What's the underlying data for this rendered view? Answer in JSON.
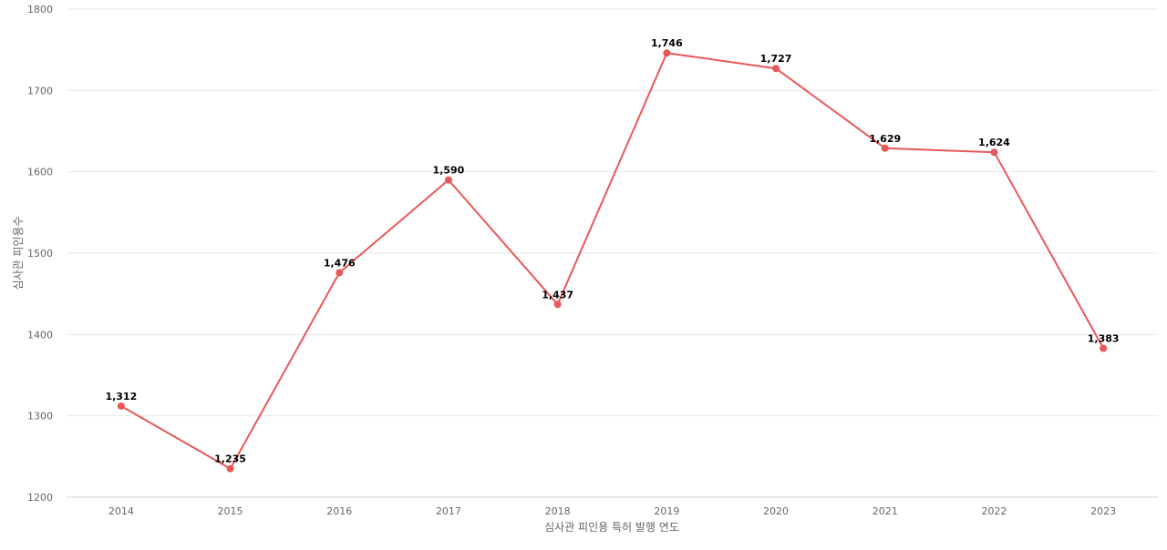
{
  "chart_data": {
    "type": "line",
    "title": "",
    "xlabel": "심사관 피인용 특허 발행 연도",
    "ylabel": "심사관 피인용수",
    "categories": [
      "2014",
      "2015",
      "2016",
      "2017",
      "2018",
      "2019",
      "2020",
      "2021",
      "2022",
      "2023"
    ],
    "series": [
      {
        "values": [
          1312,
          1235,
          1476,
          1590,
          1437,
          1746,
          1727,
          1629,
          1624,
          1383
        ],
        "data_labels": [
          "1,312",
          "1,235",
          "1,476",
          "1,590",
          "1,437",
          "1,746",
          "1,727",
          "1,629",
          "1,624",
          "1,383"
        ],
        "color": "#e85858"
      }
    ],
    "ylim": [
      1200,
      1800
    ],
    "yticks": [
      "1200",
      "1300",
      "1400",
      "1500",
      "1600",
      "1700",
      "1800"
    ],
    "grid": true,
    "legend": "none"
  }
}
